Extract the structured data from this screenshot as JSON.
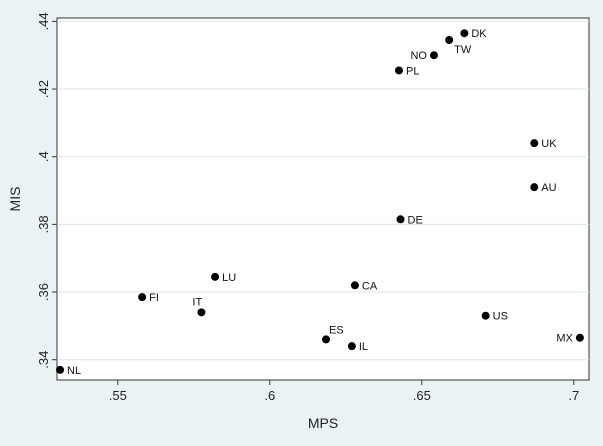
{
  "chart_data": {
    "type": "scatter",
    "title": "",
    "xlabel": "MPS",
    "ylabel": "MIS",
    "xlim": [
      0.53,
      0.705
    ],
    "ylim": [
      0.334,
      0.441
    ],
    "xticks": [
      0.55,
      0.6,
      0.65,
      0.7
    ],
    "xtick_labels": [
      ".55",
      ".6",
      ".65",
      ".7"
    ],
    "yticks": [
      0.34,
      0.36,
      0.38,
      0.4,
      0.42,
      0.44
    ],
    "ytick_labels": [
      ".34",
      ".36",
      ".38",
      ".4",
      ".42",
      ".44"
    ],
    "grid": true,
    "colors": {
      "background": "#eaf2f3",
      "plot_area": "#ffffff",
      "marker": "#000000",
      "grid": "#d9e6e8"
    },
    "points": [
      {
        "label": "DK",
        "x": 0.664,
        "y": 0.4365,
        "pos": "right"
      },
      {
        "label": "TW",
        "x": 0.659,
        "y": 0.4345,
        "pos": "below-right"
      },
      {
        "label": "NO",
        "x": 0.654,
        "y": 0.43,
        "pos": "left"
      },
      {
        "label": "PL",
        "x": 0.6425,
        "y": 0.4255,
        "pos": "right"
      },
      {
        "label": "UK",
        "x": 0.687,
        "y": 0.404,
        "pos": "right"
      },
      {
        "label": "AU",
        "x": 0.687,
        "y": 0.391,
        "pos": "right"
      },
      {
        "label": "DE",
        "x": 0.643,
        "y": 0.3815,
        "pos": "right"
      },
      {
        "label": "LU",
        "x": 0.582,
        "y": 0.3645,
        "pos": "right"
      },
      {
        "label": "CA",
        "x": 0.628,
        "y": 0.362,
        "pos": "right"
      },
      {
        "label": "FI",
        "x": 0.558,
        "y": 0.3585,
        "pos": "right"
      },
      {
        "label": "IT",
        "x": 0.5775,
        "y": 0.354,
        "pos": "above-left"
      },
      {
        "label": "US",
        "x": 0.671,
        "y": 0.353,
        "pos": "right"
      },
      {
        "label": "MX",
        "x": 0.702,
        "y": 0.3465,
        "pos": "left"
      },
      {
        "label": "ES",
        "x": 0.6185,
        "y": 0.346,
        "pos": "above-right"
      },
      {
        "label": "IL",
        "x": 0.627,
        "y": 0.344,
        "pos": "right"
      },
      {
        "label": "NL",
        "x": 0.531,
        "y": 0.337,
        "pos": "right"
      }
    ]
  }
}
